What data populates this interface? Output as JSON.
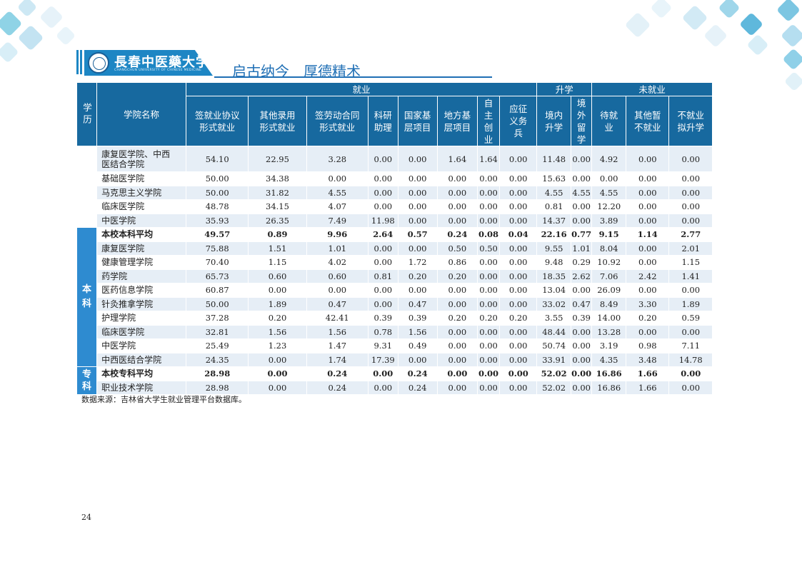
{
  "header": {
    "university_name": "長春中医藥大学",
    "university_name_en": "CHANGCHUN UNIVERSITY OF CHINESE MEDICINE",
    "motto": "启古纳今　厚德精术",
    "colors": {
      "brand_blue": "#1d86c4",
      "header_dark": "#17699f",
      "row_light": "#e6eef6",
      "group_blue": "#2e8bd0"
    }
  },
  "table": {
    "group_headers": {
      "xueli": "学历",
      "college": "学院名称",
      "jiuye": "就业",
      "shengxue": "升学",
      "weijiuye": "未就业"
    },
    "columns": [
      "签就业协议形式就业",
      "其他录用形式就业",
      "签劳动合同形式就业",
      "科研助理",
      "国家基层项目",
      "地方基层项目",
      "自主创业",
      "应征义务兵",
      "境内升学",
      "境外留学",
      "待就业",
      "其他暂不就业",
      "不就业拟升学"
    ],
    "column_display": [
      [
        "签就业协议",
        "形式就业"
      ],
      [
        "其他录用",
        "形式就业"
      ],
      [
        "签劳动合同",
        "形式就业"
      ],
      [
        "科研",
        "助理"
      ],
      [
        "国家基",
        "层项目"
      ],
      [
        "地方基",
        "层项目"
      ],
      [
        "自",
        "主",
        "创",
        "业"
      ],
      [
        "应征",
        "义务",
        "兵"
      ],
      [
        "境内",
        "升学"
      ],
      [
        "境",
        "外",
        "留",
        "学"
      ],
      [
        "待就",
        "业"
      ],
      [
        "其他暂",
        "不就业"
      ],
      [
        "不就业",
        "拟升学"
      ]
    ],
    "groups": {
      "ben": [
        "本",
        "科"
      ],
      "zhuan": [
        "专",
        "科"
      ]
    },
    "rows": [
      {
        "name": "康复医学院、中西医结合学院",
        "v": [
          "54.10",
          "22.95",
          "3.28",
          "0.00",
          "0.00",
          "1.64",
          "1.64",
          "0.00",
          "11.48",
          "0.00",
          "4.92",
          "0.00",
          "0.00"
        ]
      },
      {
        "name": "基础医学院",
        "v": [
          "50.00",
          "34.38",
          "0.00",
          "0.00",
          "0.00",
          "0.00",
          "0.00",
          "0.00",
          "15.63",
          "0.00",
          "0.00",
          "0.00",
          "0.00"
        ]
      },
      {
        "name": "马克思主义学院",
        "v": [
          "50.00",
          "31.82",
          "4.55",
          "0.00",
          "0.00",
          "0.00",
          "0.00",
          "0.00",
          "4.55",
          "4.55",
          "4.55",
          "0.00",
          "0.00"
        ]
      },
      {
        "name": "临床医学院",
        "v": [
          "48.78",
          "34.15",
          "4.07",
          "0.00",
          "0.00",
          "0.00",
          "0.00",
          "0.00",
          "0.81",
          "0.00",
          "12.20",
          "0.00",
          "0.00"
        ]
      },
      {
        "name": "中医学院",
        "v": [
          "35.93",
          "26.35",
          "7.49",
          "11.98",
          "0.00",
          "0.00",
          "0.00",
          "0.00",
          "14.37",
          "0.00",
          "3.89",
          "0.00",
          "0.00"
        ]
      },
      {
        "name": "本校本科平均",
        "v": [
          "49.57",
          "0.89",
          "9.96",
          "2.64",
          "0.57",
          "0.24",
          "0.08",
          "0.04",
          "22.16",
          "0.77",
          "9.15",
          "1.14",
          "2.77"
        ]
      },
      {
        "name": "康复医学院",
        "v": [
          "75.88",
          "1.51",
          "1.01",
          "0.00",
          "0.00",
          "0.50",
          "0.50",
          "0.00",
          "9.55",
          "1.01",
          "8.04",
          "0.00",
          "2.01"
        ]
      },
      {
        "name": "健康管理学院",
        "v": [
          "70.40",
          "1.15",
          "4.02",
          "0.00",
          "1.72",
          "0.86",
          "0.00",
          "0.00",
          "9.48",
          "0.29",
          "10.92",
          "0.00",
          "1.15"
        ]
      },
      {
        "name": "药学院",
        "v": [
          "65.73",
          "0.60",
          "0.60",
          "0.81",
          "0.20",
          "0.20",
          "0.00",
          "0.00",
          "18.35",
          "2.62",
          "7.06",
          "2.42",
          "1.41"
        ]
      },
      {
        "name": "医药信息学院",
        "v": [
          "60.87",
          "0.00",
          "0.00",
          "0.00",
          "0.00",
          "0.00",
          "0.00",
          "0.00",
          "13.04",
          "0.00",
          "26.09",
          "0.00",
          "0.00"
        ]
      },
      {
        "name": "针灸推拿学院",
        "v": [
          "50.00",
          "1.89",
          "0.47",
          "0.00",
          "0.47",
          "0.00",
          "0.00",
          "0.00",
          "33.02",
          "0.47",
          "8.49",
          "3.30",
          "1.89"
        ]
      },
      {
        "name": "护理学院",
        "v": [
          "37.28",
          "0.20",
          "42.41",
          "0.39",
          "0.39",
          "0.20",
          "0.20",
          "0.20",
          "3.55",
          "0.39",
          "14.00",
          "0.20",
          "0.59"
        ]
      },
      {
        "name": "临床医学院",
        "v": [
          "32.81",
          "1.56",
          "1.56",
          "0.78",
          "1.56",
          "0.00",
          "0.00",
          "0.00",
          "48.44",
          "0.00",
          "13.28",
          "0.00",
          "0.00"
        ]
      },
      {
        "name": "中医学院",
        "v": [
          "25.49",
          "1.23",
          "1.47",
          "9.31",
          "0.49",
          "0.00",
          "0.00",
          "0.00",
          "50.74",
          "0.00",
          "3.19",
          "0.98",
          "7.11"
        ]
      },
      {
        "name": "中西医结合学院",
        "v": [
          "24.35",
          "0.00",
          "1.74",
          "17.39",
          "0.00",
          "0.00",
          "0.00",
          "0.00",
          "33.91",
          "0.00",
          "4.35",
          "3.48",
          "14.78"
        ]
      },
      {
        "name": "本校专科平均",
        "v": [
          "28.98",
          "0.00",
          "0.24",
          "0.00",
          "0.24",
          "0.00",
          "0.00",
          "0.00",
          "52.02",
          "0.00",
          "16.86",
          "1.66",
          "0.00"
        ]
      },
      {
        "name": "职业技术学院",
        "v": [
          "28.98",
          "0.00",
          "0.24",
          "0.00",
          "0.24",
          "0.00",
          "0.00",
          "0.00",
          "52.02",
          "0.00",
          "16.86",
          "1.66",
          "0.00"
        ]
      }
    ]
  },
  "footer": {
    "source": "数据来源：吉林省大学生就业管理平台数据库。",
    "page_number": "24"
  }
}
